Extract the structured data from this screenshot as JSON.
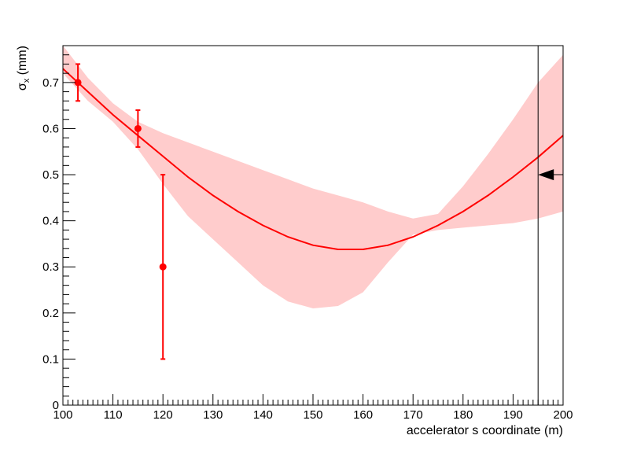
{
  "chart_data": {
    "type": "line",
    "xlabel": "accelerator s coordinate (m)",
    "ylabel_main": "σ",
    "ylabel_sub": "x",
    "ylabel_unit": " (mm)",
    "xlim": [
      100,
      200
    ],
    "ylim": [
      0,
      0.78
    ],
    "x_ticks": [
      100,
      110,
      120,
      130,
      140,
      150,
      160,
      170,
      180,
      190,
      200
    ],
    "y_ticks": [
      0,
      0.1,
      0.2,
      0.3,
      0.4,
      0.5,
      0.6,
      0.7
    ],
    "grid": false,
    "colors": {
      "fit": "#ff0000",
      "band": "#ffcccc",
      "points": "#ff0000",
      "marker": "#000000"
    },
    "fit_curve": {
      "x": [
        100,
        105,
        110,
        115,
        120,
        125,
        130,
        135,
        140,
        145,
        150,
        155,
        160,
        165,
        170,
        175,
        180,
        185,
        190,
        195,
        200
      ],
      "y": [
        0.73,
        0.68,
        0.63,
        0.585,
        0.54,
        0.495,
        0.455,
        0.42,
        0.39,
        0.365,
        0.347,
        0.338,
        0.338,
        0.347,
        0.365,
        0.39,
        0.42,
        0.455,
        0.495,
        0.538,
        0.585
      ]
    },
    "band": {
      "x": [
        100,
        105,
        110,
        115,
        120,
        125,
        130,
        135,
        140,
        145,
        150,
        155,
        160,
        165,
        170,
        175,
        180,
        185,
        190,
        195,
        200
      ],
      "upper": [
        0.78,
        0.71,
        0.655,
        0.615,
        0.59,
        0.57,
        0.55,
        0.53,
        0.51,
        0.49,
        0.47,
        0.455,
        0.44,
        0.42,
        0.405,
        0.415,
        0.475,
        0.545,
        0.62,
        0.7,
        0.76
      ],
      "lower": [
        0.72,
        0.66,
        0.615,
        0.555,
        0.48,
        0.41,
        0.36,
        0.31,
        0.26,
        0.225,
        0.21,
        0.215,
        0.245,
        0.31,
        0.37,
        0.38,
        0.385,
        0.39,
        0.395,
        0.405,
        0.42
      ]
    },
    "points": [
      {
        "x": 103,
        "y": 0.7,
        "err": 0.04
      },
      {
        "x": 115,
        "y": 0.6,
        "err": 0.04
      },
      {
        "x": 120,
        "y": 0.3,
        "err": 0.2
      }
    ],
    "marker": {
      "x": 195,
      "y": 0.5
    }
  }
}
